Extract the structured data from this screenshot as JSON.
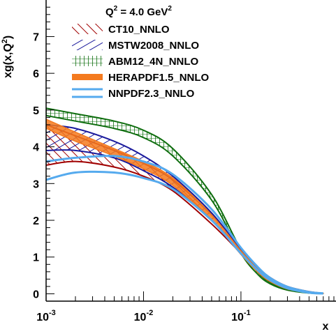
{
  "chart_data": {
    "type": "area",
    "title": "Q² = 4.0 GeV²",
    "title_parts": {
      "q": "Q",
      "q_exp": "2",
      "mid": " = 4.0 GeV",
      "unit_exp": "2"
    },
    "xlabel": "x",
    "ylabel": "xg(x,Q²)",
    "ylabel_parts": {
      "pre": "xg(x,Q",
      "exp": "2",
      "post": ")"
    },
    "x_scale": "log",
    "xlim": [
      0.001,
      0.9
    ],
    "ylim": [
      -0.2,
      7.9
    ],
    "grid": false,
    "legend_position": "top-right",
    "x_ticks": [
      {
        "value": 0.001,
        "base": "10",
        "exp": "-3"
      },
      {
        "value": 0.01,
        "base": "10",
        "exp": "-2"
      },
      {
        "value": 0.1,
        "base": "10",
        "exp": "-1"
      }
    ],
    "y_ticks": [
      0,
      1,
      2,
      3,
      4,
      5,
      6,
      7
    ],
    "x": [
      0.001,
      0.002,
      0.005,
      0.01,
      0.02,
      0.05,
      0.1,
      0.15,
      0.2,
      0.3,
      0.5,
      0.7
    ],
    "series": [
      {
        "name": "CT10_NNLO",
        "color": "#a00000",
        "style": "hatch-diagonal",
        "lower": [
          3.5,
          3.6,
          3.45,
          3.2,
          2.8,
          1.9,
          1.1,
          0.62,
          0.37,
          0.16,
          0.04,
          0.01
        ],
        "upper": [
          4.6,
          4.3,
          3.9,
          3.55,
          3.1,
          2.15,
          1.22,
          0.72,
          0.44,
          0.2,
          0.06,
          0.015
        ]
      },
      {
        "name": "MSTW2008_NNLO",
        "color": "#1a1a9c",
        "style": "hatch-diagonal-reverse",
        "lower": [
          3.9,
          3.9,
          3.7,
          3.35,
          2.9,
          2.0,
          1.08,
          0.6,
          0.34,
          0.14,
          0.03,
          0.008
        ],
        "upper": [
          4.6,
          4.5,
          4.15,
          3.75,
          3.2,
          2.2,
          1.2,
          0.68,
          0.4,
          0.17,
          0.05,
          0.012
        ]
      },
      {
        "name": "ABM12_4N_NNLO",
        "color": "#0f6e0f",
        "style": "hatch-grid",
        "lower": [
          4.85,
          4.7,
          4.5,
          4.25,
          3.75,
          2.55,
          1.1,
          0.52,
          0.27,
          0.1,
          0.02,
          0.005
        ],
        "upper": [
          5.05,
          4.9,
          4.7,
          4.45,
          3.95,
          2.7,
          1.2,
          0.58,
          0.31,
          0.12,
          0.03,
          0.008
        ]
      },
      {
        "name": "HERAPDF1.5_NNLO",
        "color": "#f47a1f",
        "style": "solid",
        "lower": [
          4.5,
          4.15,
          3.75,
          3.4,
          2.95,
          2.0,
          1.07,
          0.58,
          0.33,
          0.13,
          0.03,
          0.008
        ],
        "upper": [
          4.75,
          4.4,
          3.95,
          3.6,
          3.15,
          2.15,
          1.17,
          0.66,
          0.39,
          0.17,
          0.05,
          0.015
        ]
      },
      {
        "name": "NNPDF2.3_NNLO",
        "color": "#55aaee",
        "style": "outline",
        "lower": [
          3.1,
          3.3,
          3.3,
          3.15,
          2.85,
          2.0,
          1.1,
          0.63,
          0.37,
          0.15,
          0.03,
          0.008
        ],
        "upper": [
          3.6,
          3.7,
          3.75,
          3.6,
          3.25,
          2.3,
          1.25,
          0.72,
          0.43,
          0.19,
          0.05,
          0.014
        ]
      }
    ]
  }
}
